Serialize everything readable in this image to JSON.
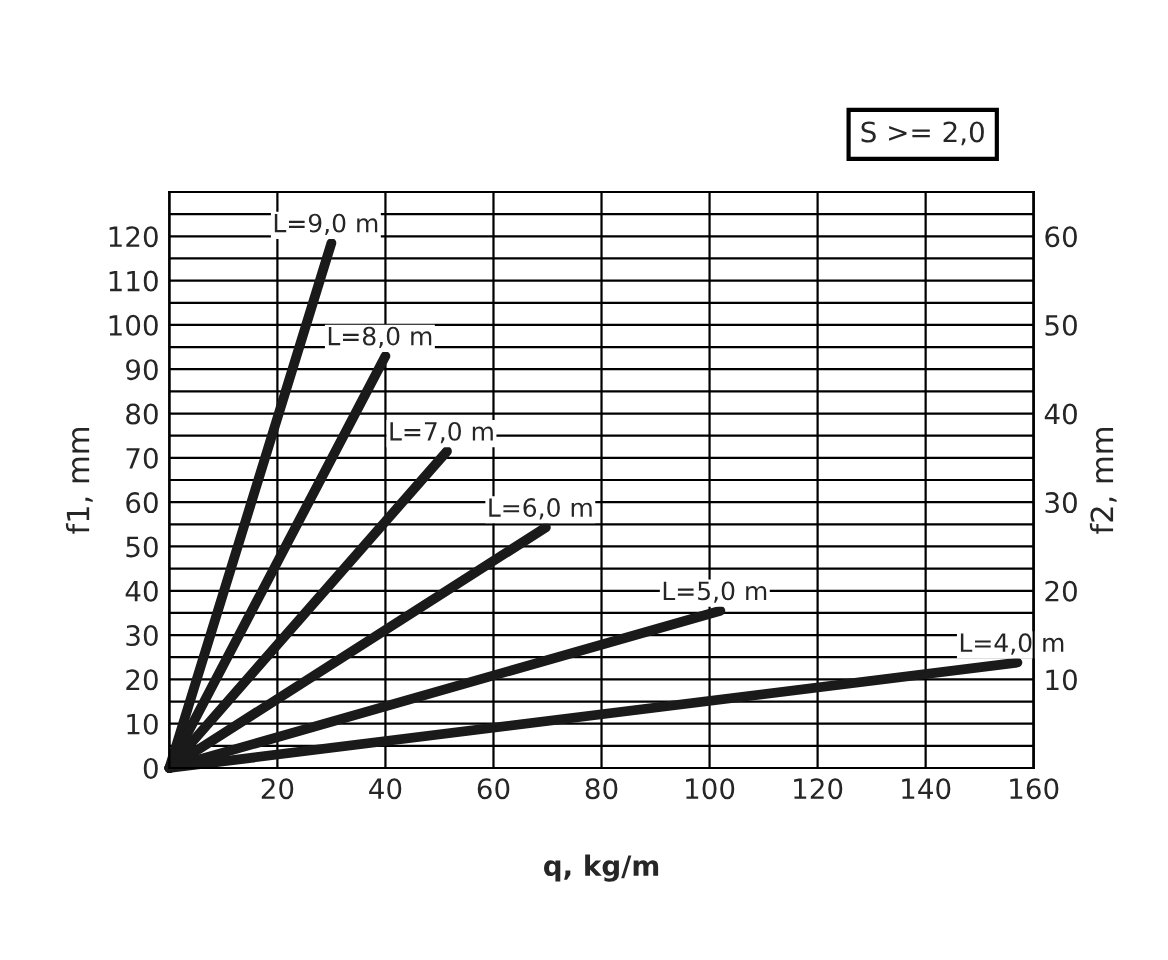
{
  "chart_data": {
    "type": "line",
    "xlabel": "q, kg/m",
    "ylabel": "f1, mm",
    "y2label": "f2, mm",
    "xlim": [
      0,
      160
    ],
    "xticks": [
      20,
      40,
      60,
      80,
      100,
      120,
      140,
      160
    ],
    "ylim": [
      0,
      130
    ],
    "yticks": [
      0,
      10,
      20,
      30,
      40,
      50,
      60,
      70,
      80,
      90,
      100,
      110,
      120
    ],
    "y2lim": [
      0,
      65
    ],
    "y2ticks": [
      10,
      20,
      30,
      40,
      50,
      60
    ],
    "grid": true,
    "legend": false,
    "marker": "none",
    "line_style": "solid",
    "series": [
      {
        "color": "#1a1a1a",
        "x": [
          0,
          30
        ],
        "values": [
          0,
          118.5
        ]
      },
      {
        "color": "#1a1a1a",
        "x": [
          0,
          40
        ],
        "values": [
          0,
          93
        ]
      },
      {
        "color": "#1a1a1a",
        "x": [
          0,
          51.4
        ],
        "values": [
          0,
          71.5
        ]
      },
      {
        "color": "#1a1a1a",
        "x": [
          0,
          69.7
        ],
        "values": [
          0,
          54.3
        ]
      },
      {
        "color": "#1a1a1a",
        "x": [
          0,
          102
        ],
        "values": [
          0,
          35.5
        ]
      },
      {
        "color": "#1a1a1a",
        "x": [
          0,
          157
        ],
        "values": [
          0,
          23.8
        ]
      }
    ],
    "annotations": [
      {
        "text": "L=9,0 m",
        "x": 30,
        "y": 118.5
      },
      {
        "text": "L=8,0 m",
        "x": 40,
        "y": 93
      },
      {
        "text": "L=7,0 m",
        "x": 51.4,
        "y": 71.5
      },
      {
        "text": "L=6,0 m",
        "x": 69.7,
        "y": 54.3
      },
      {
        "text": "L=5,0 m",
        "x": 102,
        "y": 35.5
      },
      {
        "text": "L=4,0 m",
        "x": 157,
        "y": 23.8
      },
      "S >= 2,0"
    ]
  }
}
